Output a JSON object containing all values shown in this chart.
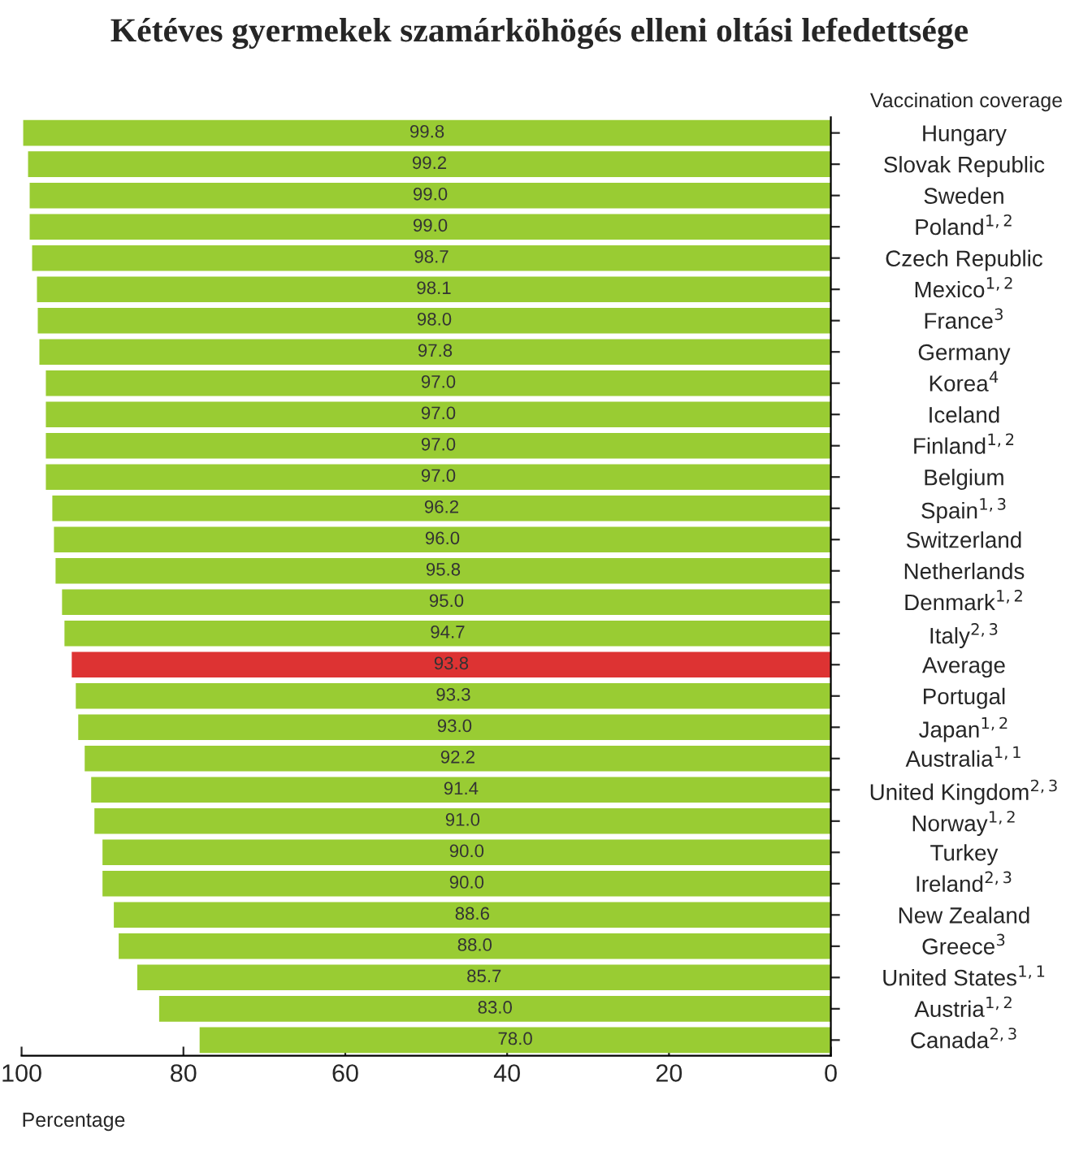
{
  "chart_data": {
    "type": "bar",
    "orientation": "horizontal",
    "title": "Kétéves gyermekek szamárköhögés elleni oltási lefedettsége",
    "ylabel": "Vaccination coverage",
    "xlabel": "Percentage",
    "categories": [
      "Hungary",
      "Slovak Republic",
      "Sweden",
      "Poland$^{1,2}$",
      "Czech Republic",
      "Mexico$^{1,2}$",
      "France$^{3}$",
      "Germany",
      "Korea$^{4}$",
      "Iceland",
      "Finland$^{1,2}$",
      "Belgium",
      "Spain$^{1,3}$",
      "Switzerland",
      "Netherlands",
      "Denmark$^{1,2}$",
      "Italy$^{2,3}$",
      "Average",
      "Portugal",
      "Japan$^{1,2}$",
      "Australia$^{1,1}$",
      "United Kingdom$^{2,3}$",
      "Norway$^{1,2}$",
      "Turkey",
      "Ireland$^{2,3}$",
      "New Zealand",
      "Greece$^{3}$",
      "United States$^{1,1}$",
      "Austria$^{1,2}$",
      "Canada$^{2,3}$"
    ],
    "values": [
      99.8,
      99.2,
      99.0,
      99.0,
      98.7,
      98.1,
      98.0,
      97.8,
      97.0,
      97.0,
      97.0,
      97.0,
      96.2,
      96.0,
      95.8,
      95.0,
      94.7,
      93.8,
      93.3,
      93.0,
      92.2,
      91.4,
      91.0,
      90.0,
      90.0,
      88.6,
      88.0,
      85.7,
      83.0,
      78.0
    ],
    "colors": [
      "#99cc33",
      "#99cc33",
      "#99cc33",
      "#99cc33",
      "#99cc33",
      "#99cc33",
      "#99cc33",
      "#99cc33",
      "#99cc33",
      "#99cc33",
      "#99cc33",
      "#99cc33",
      "#99cc33",
      "#99cc33",
      "#99cc33",
      "#99cc33",
      "#99cc33",
      "#dd3333",
      "#99cc33",
      "#99cc33",
      "#99cc33",
      "#99cc33",
      "#99cc33",
      "#99cc33",
      "#99cc33",
      "#99cc33",
      "#99cc33",
      "#99cc33",
      "#99cc33",
      "#99cc33"
    ],
    "value_labels": [
      "99.8",
      "99.2",
      "99.0",
      "99.0",
      "98.7",
      "98.1",
      "98.0",
      "97.8",
      "97.0",
      "97.0",
      "97.0",
      "97.0",
      "96.2",
      "96.0",
      "95.8",
      "95.0",
      "94.7",
      "93.8",
      "93.3",
      "93.0",
      "92.2",
      "91.4",
      "91.0",
      "90.0",
      "90.0",
      "88.6",
      "88.0",
      "85.7",
      "83.0",
      "78.0"
    ],
    "xlim": [
      100,
      0
    ],
    "xticks": [
      100,
      80,
      60,
      40,
      20,
      0
    ],
    "grid": false,
    "legend": false
  }
}
